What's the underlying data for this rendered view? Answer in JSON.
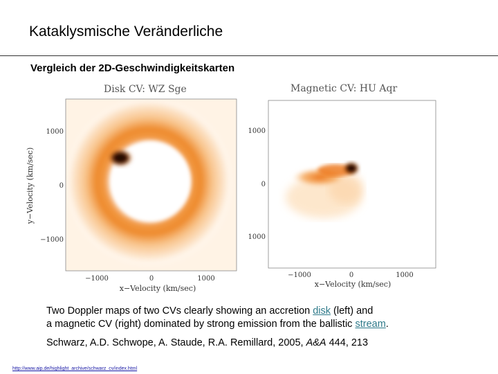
{
  "slide": {
    "title": "Kataklysmische Veränderliche",
    "subtitle": "Vergleich der 2D-Geschwindigkeitskarten"
  },
  "maps": {
    "left": {
      "title": "Disk CV: WZ Sge",
      "y_ticks": [
        "1000",
        "0",
        "−1000"
      ],
      "x_ticks": [
        "−1000",
        "0",
        "1000"
      ],
      "xlabel": "x−Velocity (km/sec)",
      "ylabel": "y−Velocity (km/sec)"
    },
    "right": {
      "title": "Magnetic CV: HU Aqr",
      "y_ticks": [
        "1000",
        "0",
        "1000"
      ],
      "x_ticks": [
        "−1000",
        "0",
        "1000"
      ],
      "xlabel": "x−Velocity (km/sec)"
    },
    "colors": {
      "emission_low": "#fde3c4",
      "emission_mid": "#f7a24a",
      "emission_high": "#e8680f",
      "emission_peak": "#1a0a00"
    }
  },
  "caption": {
    "text_1": "Two Doppler maps of two CVs clearly showing an accretion ",
    "link_disk": "disk",
    "text_2": " (left) and",
    "text_3": "a magnetic CV (right) dominated by strong emission from the ballistic ",
    "link_stream": "stream",
    "text_4": "."
  },
  "reference": {
    "authors": "Schwarz, A.D. Schwope, A. Staude, R.A. Remillard, 2005, ",
    "journal": "A&A",
    "volume": " 444, 213"
  },
  "footer": {
    "url": "http://www.aip.de/highlight_archive/schwarz_cv/index.html"
  }
}
